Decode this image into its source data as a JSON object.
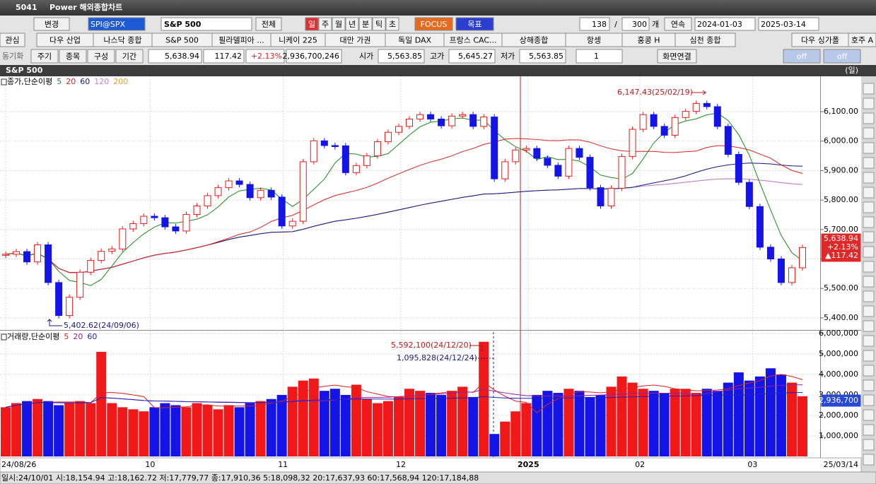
{
  "window": {
    "id": "5041",
    "title": "Power 해외종합차트"
  },
  "toolbar": {
    "change": "변경",
    "symbol": "SPI@SPX",
    "name": "S&P 500",
    "all": "전체",
    "periods": [
      "일",
      "주",
      "월",
      "년",
      "분",
      "틱",
      "초"
    ],
    "focus": "FOCUS",
    "target": "목표",
    "count": "138",
    "slash": "/",
    "total": "300",
    "unit": "개",
    "cont": "연속",
    "from": "2024-01-03",
    "to": "2025-03-14"
  },
  "indexes": [
    "관심",
    "다우 산업",
    "나스닥 종합",
    "S&P 500",
    "필라델피아 ...",
    "니케이 225",
    "대만 가권",
    "독일 DAX",
    "프랑스 CAC...",
    "상해종합",
    "항셍",
    "홍콩 H",
    "심천 종합",
    "다우 싱가폴",
    "호주 A"
  ],
  "info": {
    "sync": "동기화",
    "buttons": [
      "주기",
      "종목",
      "구성",
      "기간"
    ],
    "price": "5,638.94",
    "change": "117.42",
    "rate": "+2.13%",
    "volume": "2,936,700,246",
    "open_label": "시가",
    "open": "5,563.85",
    "high_label": "고가",
    "high": "5,645.27",
    "low_label": "저가",
    "low": "5,563.85",
    "mult": "1",
    "screen": "화면연결",
    "off1": "off",
    "off2": "off"
  },
  "chart": {
    "title": "S&P 500",
    "period": "(일)",
    "price_legend": "종가,단순이평",
    "ma": [
      {
        "period": 5,
        "color": "#1a8a1a"
      },
      {
        "period": 20,
        "color": "#e02020"
      },
      {
        "period": 60,
        "color": "#101880"
      },
      {
        "period": 120,
        "color": "#c080e0"
      },
      {
        "period": 200,
        "color": "#e8a020"
      }
    ],
    "ylim": [
      5359,
      6220
    ],
    "yticks": [
      {
        "value": 5400,
        "label": "5,400.00"
      },
      {
        "value": 5500,
        "label": "5,500.00"
      },
      {
        "value": 5600,
        "label": "5,600.00"
      },
      {
        "value": 5700,
        "label": "5,700.00"
      },
      {
        "value": 5800,
        "label": "5,800.00"
      },
      {
        "value": 5900,
        "label": "5,900.00"
      },
      {
        "value": 6000,
        "label": "6,000.00"
      },
      {
        "value": 6100,
        "label": "6,100.00"
      }
    ],
    "closes": [
      5616,
      5625,
      5590,
      5648,
      5520,
      5408,
      5470,
      5555,
      5595,
      5626,
      5634,
      5702,
      5720,
      5745,
      5740,
      5709,
      5695,
      5751,
      5780,
      5815,
      5842,
      5865,
      5853,
      5808,
      5833,
      5810,
      5712,
      5728,
      5930,
      6001,
      5985,
      5984,
      5893,
      5917,
      5950,
      5998,
      6030,
      6050,
      6075,
      6090,
      6075,
      6052,
      6085,
      6090,
      6050,
      6082,
      5872,
      5930,
      5970,
      5975,
      5942,
      5918,
      5881,
      5975,
      5945,
      5842,
      5780,
      5840,
      5948,
      6040,
      6090,
      6050,
      6020,
      6080,
      6101,
      6128,
      6117,
      6050,
      5955,
      5860,
      5778,
      5640,
      5600,
      5520,
      5570,
      5638.94
    ],
    "high_annot": "6,147.43(25/02/19)",
    "low_annot": "5,402.62(24/09/06)",
    "last_price": "5,638.94",
    "last_rate": "+2.13%",
    "last_change": "▲117.42",
    "volume_legend": "거래량,단순이평",
    "vol_ma": [
      {
        "period": 5,
        "color": "#e02020"
      },
      {
        "period": 20,
        "color": "#9020a0"
      },
      {
        "period": 60,
        "color": "#2020c0"
      }
    ],
    "vlim": [
      0,
      6100000
    ],
    "vticks": [
      {
        "value": 1000000,
        "label": "1,000,000"
      },
      {
        "value": 2000000,
        "label": "2,000,000"
      },
      {
        "value": 3000000,
        "label": "3,000,000"
      },
      {
        "value": 4000000,
        "label": "4,000,000"
      },
      {
        "value": 5000000,
        "label": "5,000,000"
      },
      {
        "value": 6000000,
        "label": "6,000,000"
      }
    ],
    "volumes": [
      2400000,
      2600000,
      2700000,
      2800000,
      2700000,
      2500000,
      2600000,
      2700000,
      2600000,
      5100000,
      2600000,
      2400000,
      2300000,
      2200000,
      2400000,
      2600000,
      2500000,
      2400000,
      2600000,
      2500000,
      2300000,
      2500000,
      2400000,
      2600000,
      2700000,
      2800000,
      3000000,
      3400000,
      3700000,
      3800000,
      3200000,
      3300000,
      3000000,
      3500000,
      2800000,
      2600000,
      2700000,
      2900000,
      3300000,
      3200000,
      3100000,
      3000000,
      3200000,
      3400000,
      2900000,
      5592100,
      1095828,
      1700000,
      2200000,
      2600000,
      3000000,
      3200000,
      3100000,
      3300000,
      3200000,
      2900000,
      3000000,
      3400000,
      3900000,
      3600000,
      3300000,
      3200000,
      3100000,
      3300000,
      3300000,
      3100000,
      3300000,
      3200000,
      3600000,
      4100000,
      3700000,
      3900000,
      4300000,
      4000000,
      3600000,
      2936700
    ],
    "vol_annot_high": "5,592,100(24/12/20)",
    "vol_annot_low": "1,095,828(24/12/24)",
    "last_volume": "2,936,700",
    "xticks": [
      {
        "value": 0,
        "label": "24/08/26"
      },
      {
        "value": 13.6,
        "label": "10"
      },
      {
        "value": 26.1,
        "label": "11"
      },
      {
        "value": 37.2,
        "label": "12"
      },
      {
        "value": 49.2,
        "label": "2025"
      },
      {
        "value": 59.7,
        "label": "02"
      },
      {
        "value": 70.3,
        "label": "03"
      }
    ],
    "end_label": "25/03/14"
  },
  "status": "일시:24/10/01 시:18,154.94 고:18,162.72 저:17,779,77 종:17,910,36 5:18,098,32 20:17,637,93 60:17,568,94 120:17,184,88"
}
